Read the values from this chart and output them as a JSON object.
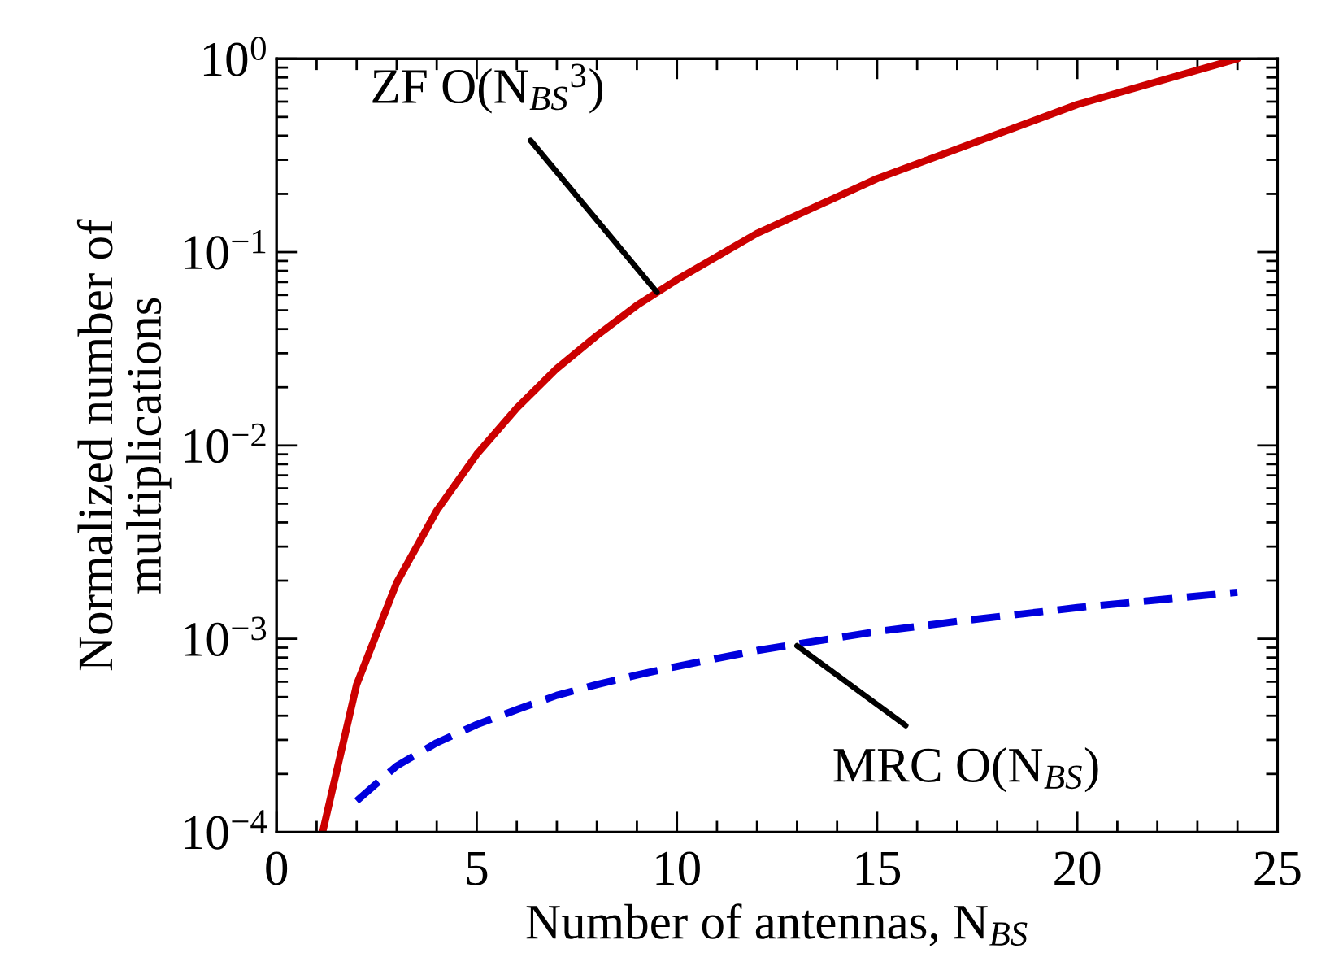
{
  "chart_data": {
    "type": "line",
    "xlabel": "Number of antennas, N$_{BS}$",
    "ylabel": "Normalized number of\nmultiplications",
    "log": "y",
    "xlim": [
      0,
      25
    ],
    "xticks": [
      0,
      5,
      10,
      15,
      20,
      25
    ],
    "ylim": [
      0.0001,
      1
    ],
    "yticks": [
      {
        "value": 0.0001,
        "label": "10$^{−4}$"
      },
      {
        "value": 0.001,
        "label": "10$^{−3}$"
      },
      {
        "value": 0.01,
        "label": "10$^{−2}$"
      },
      {
        "value": 0.1,
        "label": "10$^{−1}$"
      },
      {
        "value": 1,
        "label": "10$^{0}$"
      }
    ],
    "grid": false,
    "legend": false,
    "series": [
      {
        "color": "#cc0000",
        "line_style": "solid",
        "x": [
          1.15,
          2,
          3,
          4,
          5,
          6,
          7,
          8,
          9,
          10,
          12,
          15,
          20,
          24
        ],
        "values": [
          0.0001,
          0.00058,
          0.00195,
          0.0046,
          0.009,
          0.0156,
          0.025,
          0.037,
          0.053,
          0.072,
          0.125,
          0.24,
          0.58,
          1.0
        ]
      },
      {
        "color": "#0000dd",
        "line_style": "dashed",
        "x": [
          2,
          3,
          4,
          5,
          6,
          7,
          8,
          9,
          10,
          12,
          13,
          15,
          17,
          20,
          22,
          24
        ],
        "values": [
          0.000145,
          0.00022,
          0.00029,
          0.00036,
          0.00043,
          0.00051,
          0.00058,
          0.00065,
          0.00072,
          0.00087,
          0.00094,
          0.00109,
          0.00123,
          0.00145,
          0.00159,
          0.00174
        ]
      }
    ],
    "annotations": [
      {
        "text": "ZF O(N$_{BS}$$^{3}$)",
        "x": 9.5,
        "y": 0.062
      },
      {
        "text": "MRC O(N$_{BS}$)",
        "x": 13,
        "y": 0.00092
      }
    ]
  }
}
